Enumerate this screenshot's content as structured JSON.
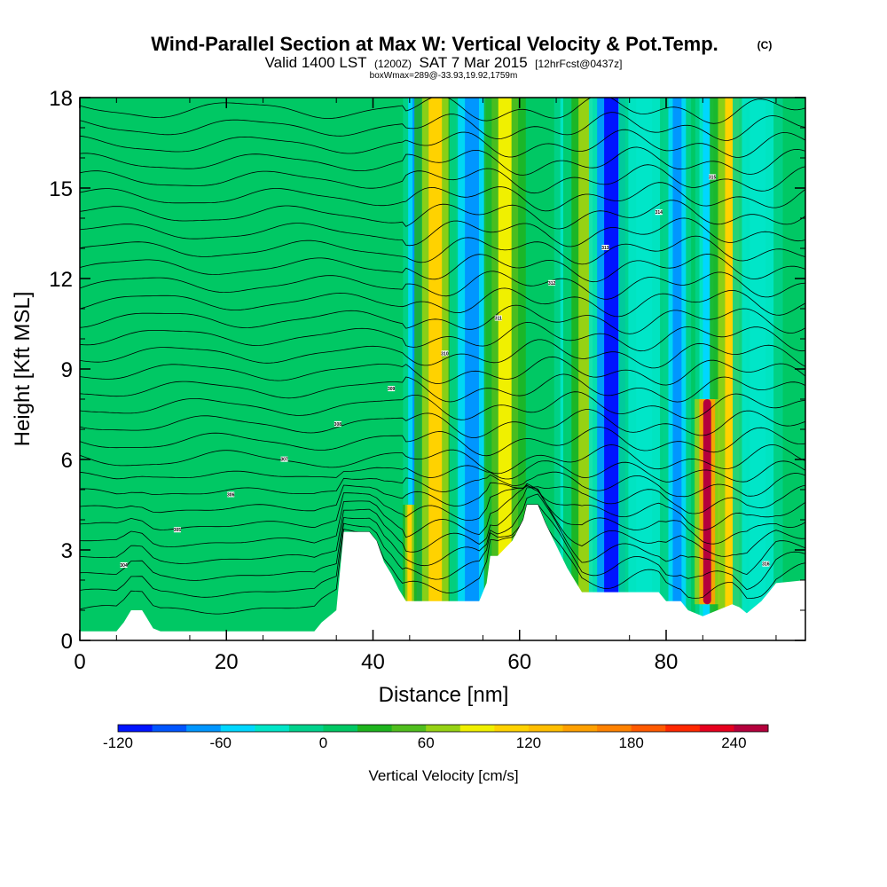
{
  "header": {
    "title": "Wind-Parallel Section at Max W: Vertical Velocity & Pot.Temp.",
    "copyright": "(C)",
    "valid_label": "Valid 1400 LST",
    "valid_utc": "(1200Z)",
    "valid_date": "SAT 7 Mar 2015",
    "forecast": "[12hrFcst@0437z]",
    "box_info": "boxWmax=289@-33.93,19.92,1759m"
  },
  "chart_data": {
    "type": "heatmap",
    "title": "Wind-Parallel Section at Max W: Vertical Velocity & Pot.Temp.",
    "xlabel": "Distance [nm]",
    "ylabel": "Height [Kft MSL]",
    "xlim": [
      0,
      99
    ],
    "ylim": [
      0,
      18
    ],
    "xticks": [
      0,
      20,
      40,
      60,
      80
    ],
    "yticks": [
      0,
      3,
      6,
      9,
      12,
      15,
      18
    ],
    "colorbar": {
      "label": "Vertical Velocity [cm/s]",
      "ticks": [
        -120,
        -60,
        0,
        60,
        120,
        180,
        240
      ],
      "levels": [
        -120,
        -100,
        -80,
        -60,
        -40,
        -20,
        0,
        20,
        40,
        60,
        80,
        100,
        120,
        140,
        160,
        180,
        200,
        220,
        240,
        260
      ],
      "colors": [
        "#0014ff",
        "#0055ff",
        "#0096ff",
        "#00d7ff",
        "#00e6c8",
        "#00d28c",
        "#00c864",
        "#1eb41e",
        "#50be1e",
        "#96d214",
        "#f0f000",
        "#ffd200",
        "#ffbe00",
        "#ffa000",
        "#ff8200",
        "#ff5a00",
        "#ff2800",
        "#e6001e",
        "#b4003c"
      ]
    },
    "terrain": [
      [
        0,
        0.3
      ],
      [
        5,
        0.3
      ],
      [
        6,
        0.6
      ],
      [
        7,
        1
      ],
      [
        8.5,
        1
      ],
      [
        9,
        0.8
      ],
      [
        10,
        0.4
      ],
      [
        11,
        0.3
      ],
      [
        32,
        0.3
      ],
      [
        33,
        0.6
      ],
      [
        35,
        1
      ],
      [
        36,
        3.6
      ],
      [
        38,
        3.6
      ],
      [
        39.5,
        3.6
      ],
      [
        40.5,
        3.3
      ],
      [
        41.5,
        2.6
      ],
      [
        42.5,
        2.2
      ],
      [
        43.5,
        1.7
      ],
      [
        44.5,
        1.3
      ],
      [
        54.5,
        1.3
      ],
      [
        55.5,
        1.9
      ],
      [
        56,
        2.8
      ],
      [
        57,
        2.8
      ],
      [
        59,
        3.3
      ],
      [
        60.5,
        4
      ],
      [
        61,
        4.5
      ],
      [
        62.5,
        4.5
      ],
      [
        63.5,
        3.9
      ],
      [
        64.5,
        3.4
      ],
      [
        65.5,
        2.9
      ],
      [
        66.5,
        2.4
      ],
      [
        67.5,
        2
      ],
      [
        68.5,
        1.6
      ],
      [
        79,
        1.6
      ],
      [
        80,
        1.3
      ],
      [
        82,
        1.3
      ],
      [
        83,
        1
      ],
      [
        85,
        0.8
      ],
      [
        87,
        1
      ],
      [
        89,
        1.2
      ],
      [
        90,
        1.1
      ],
      [
        91,
        0.9
      ],
      [
        93,
        1.3
      ],
      [
        94,
        1.6
      ],
      [
        95,
        1.9
      ],
      [
        99,
        2
      ]
    ],
    "wind_bands": [
      {
        "x": 46,
        "width": 1.0,
        "value": -80
      },
      {
        "x": 48.5,
        "width": 1.5,
        "value": 110
      },
      {
        "x": 53.5,
        "width": 1.6,
        "value": -80
      },
      {
        "x": 58,
        "width": 1.5,
        "value": 90
      },
      {
        "x": 67,
        "width": 1.2,
        "value": -40
      },
      {
        "x": 69,
        "width": 1.6,
        "value": 70
      },
      {
        "x": 72.5,
        "width": 1.6,
        "value": -120
      },
      {
        "x": 77,
        "width": 1.8,
        "value": -40
      },
      {
        "x": 81.5,
        "width": 1.0,
        "value": -80
      },
      {
        "x": 85.5,
        "width": 0.8,
        "value": -60
      },
      {
        "x": 89,
        "width": 1.6,
        "value": 110
      },
      {
        "x": 92.5,
        "width": 1.8,
        "value": -40
      },
      {
        "x": 45,
        "width": 0.5,
        "value": 110,
        "zmax": 4.5
      },
      {
        "x": 85.6,
        "width": 0.9,
        "value": 270,
        "zmin": 1.2,
        "zmax": 8.0
      }
    ],
    "isentropes": {
      "count": 30,
      "zmin": 0.8,
      "zmax": 17.6
    },
    "theta_labels": [
      "304",
      "305",
      "306",
      "307",
      "308",
      "309",
      "310",
      "311",
      "312",
      "313",
      "314",
      "315",
      "316"
    ]
  }
}
